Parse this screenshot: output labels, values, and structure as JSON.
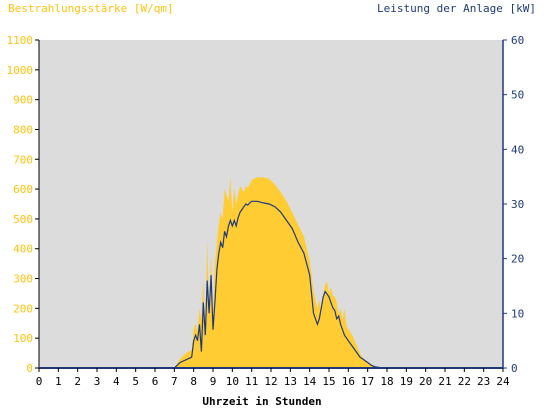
{
  "colors": {
    "plot_bg": "#dcdcdc",
    "irradiance": "#ffcc33",
    "power": "#1f3a7a",
    "left_axis_text": "#ffc20e",
    "right_axis_text": "#1f3a7a",
    "axis_text": "#000000"
  },
  "chart_data": {
    "type": "area",
    "title_left": "Bestrahlungsstärke [W/qm]",
    "title_right": "Leistung der Anlage [kW]",
    "xlabel": "Uhrzeit in Stunden",
    "xlim": [
      0,
      24
    ],
    "x_ticks": [
      "0",
      "1",
      "2",
      "3",
      "4",
      "5",
      "6",
      "7",
      "8",
      "9",
      "10",
      "11",
      "12",
      "13",
      "14",
      "15",
      "16",
      "17",
      "18",
      "19",
      "20",
      "21",
      "22",
      "23",
      "24"
    ],
    "y_left": {
      "lim": [
        0,
        1100
      ],
      "ticks": [
        "0",
        "100",
        "200",
        "300",
        "400",
        "500",
        "600",
        "700",
        "800",
        "900",
        "1000",
        "1100"
      ]
    },
    "y_right": {
      "lim": [
        0,
        60
      ],
      "ticks": [
        "0",
        "10",
        "20",
        "30",
        "40",
        "50",
        "60"
      ]
    },
    "series": [
      {
        "name": "Bestrahlungsstärke",
        "axis": "left",
        "style": "area",
        "x": [
          0,
          7.0,
          7.3,
          7.6,
          7.9,
          8.0,
          8.1,
          8.2,
          8.3,
          8.4,
          8.5,
          8.6,
          8.7,
          8.8,
          8.9,
          9.0,
          9.1,
          9.2,
          9.3,
          9.4,
          9.5,
          9.6,
          9.7,
          9.8,
          9.9,
          10.0,
          10.1,
          10.2,
          10.3,
          10.4,
          10.5,
          10.6,
          10.7,
          10.8,
          10.9,
          11.0,
          11.3,
          11.6,
          11.9,
          12.2,
          12.5,
          12.8,
          13.1,
          13.4,
          13.7,
          14.0,
          14.2,
          14.4,
          14.5,
          14.6,
          14.7,
          14.8,
          14.9,
          15.0,
          15.1,
          15.2,
          15.3,
          15.4,
          15.5,
          15.6,
          15.7,
          15.8,
          15.9,
          16.0,
          16.2,
          16.4,
          16.6,
          16.8,
          17.0,
          17.2,
          17.4,
          17.6,
          17.8,
          18.0,
          24
        ],
        "values": [
          0,
          0,
          30,
          50,
          60,
          130,
          150,
          120,
          200,
          160,
          300,
          80,
          430,
          200,
          380,
          150,
          350,
          420,
          480,
          520,
          500,
          600,
          580,
          560,
          640,
          520,
          600,
          550,
          580,
          610,
          600,
          590,
          610,
          605,
          615,
          630,
          640,
          640,
          635,
          615,
          590,
          560,
          520,
          480,
          440,
          360,
          260,
          200,
          230,
          180,
          240,
          280,
          290,
          250,
          270,
          240,
          240,
          220,
          180,
          200,
          160,
          200,
          140,
          130,
          110,
          80,
          50,
          30,
          20,
          10,
          5,
          3,
          1,
          0,
          0
        ]
      },
      {
        "name": "Leistung der Anlage",
        "axis": "right",
        "style": "line",
        "x": [
          0,
          7.0,
          7.3,
          7.6,
          7.9,
          8.0,
          8.1,
          8.2,
          8.3,
          8.4,
          8.5,
          8.6,
          8.7,
          8.8,
          8.9,
          9.0,
          9.1,
          9.2,
          9.3,
          9.4,
          9.5,
          9.6,
          9.7,
          9.8,
          9.9,
          10.0,
          10.1,
          10.2,
          10.3,
          10.4,
          10.5,
          10.6,
          10.7,
          10.8,
          10.9,
          11.0,
          11.3,
          11.6,
          11.9,
          12.2,
          12.5,
          12.8,
          13.1,
          13.4,
          13.7,
          14.0,
          14.2,
          14.4,
          14.5,
          14.6,
          14.7,
          14.8,
          14.9,
          15.0,
          15.1,
          15.2,
          15.3,
          15.4,
          15.5,
          15.6,
          15.7,
          15.8,
          15.9,
          16.0,
          16.2,
          16.4,
          16.6,
          16.8,
          17.0,
          17.2,
          17.4,
          17.6,
          17.8,
          18.0,
          24
        ],
        "values": [
          0,
          0,
          1,
          1.5,
          2,
          5,
          6,
          5,
          8,
          3,
          12,
          6,
          16,
          10,
          17,
          7,
          12,
          18,
          21,
          23,
          22,
          25,
          24,
          26,
          27,
          26,
          27,
          26,
          27.5,
          28.5,
          29,
          29.5,
          30,
          29.8,
          30.2,
          30.5,
          30.5,
          30.2,
          30,
          29.5,
          28.5,
          27,
          25.5,
          23,
          21,
          17,
          10,
          8,
          9,
          11,
          13,
          14,
          13.5,
          13,
          12,
          11,
          10.5,
          9,
          9.5,
          8,
          7,
          6,
          5.5,
          5,
          4,
          3,
          2,
          1.5,
          1,
          0.5,
          0.2,
          0.1,
          0,
          0,
          0
        ]
      }
    ]
  }
}
